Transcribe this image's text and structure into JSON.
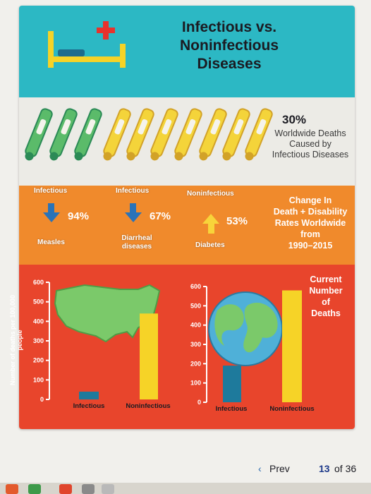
{
  "infographic": {
    "title": "Infectious vs.\nNoninfectious\nDiseases",
    "worldwide_percent": "30%",
    "worldwide_caption": "Worldwide Deaths Caused by Infectious Diseases"
  },
  "chart_data": [
    {
      "type": "table",
      "title": "Change In\nDeath + Disability\nRates Worldwide\nfrom\n1990–2015",
      "items": [
        {
          "category": "Infectious",
          "disease": "Measles",
          "percent": "94%",
          "direction": "down"
        },
        {
          "category": "Infectious",
          "disease": "Diarrheal diseases",
          "percent": "67%",
          "direction": "down"
        },
        {
          "category": "Noninfectious",
          "disease": "Diabetes",
          "percent": "53%",
          "direction": "up"
        }
      ]
    },
    {
      "type": "bar",
      "title": "Current\nNumber\nof\nDeaths",
      "ylabel": "Number of deaths per 100,000 people",
      "ylim": [
        0,
        600
      ],
      "yticks": [
        "0",
        "100",
        "200",
        "300",
        "400",
        "500",
        "600"
      ],
      "panels": [
        {
          "categories": [
            "Infectious",
            "Noninfectious"
          ],
          "values": [
            40,
            440
          ],
          "colors": [
            "#1e7a9c",
            "#f6d327"
          ]
        },
        {
          "categories": [
            "Infectious",
            "Noninfectious"
          ],
          "values": [
            190,
            580
          ],
          "colors": [
            "#1e7a9c",
            "#f6d327"
          ]
        }
      ]
    }
  ],
  "nav": {
    "prev_label": "Prev",
    "page_current": "13",
    "page_total": "of 36"
  }
}
